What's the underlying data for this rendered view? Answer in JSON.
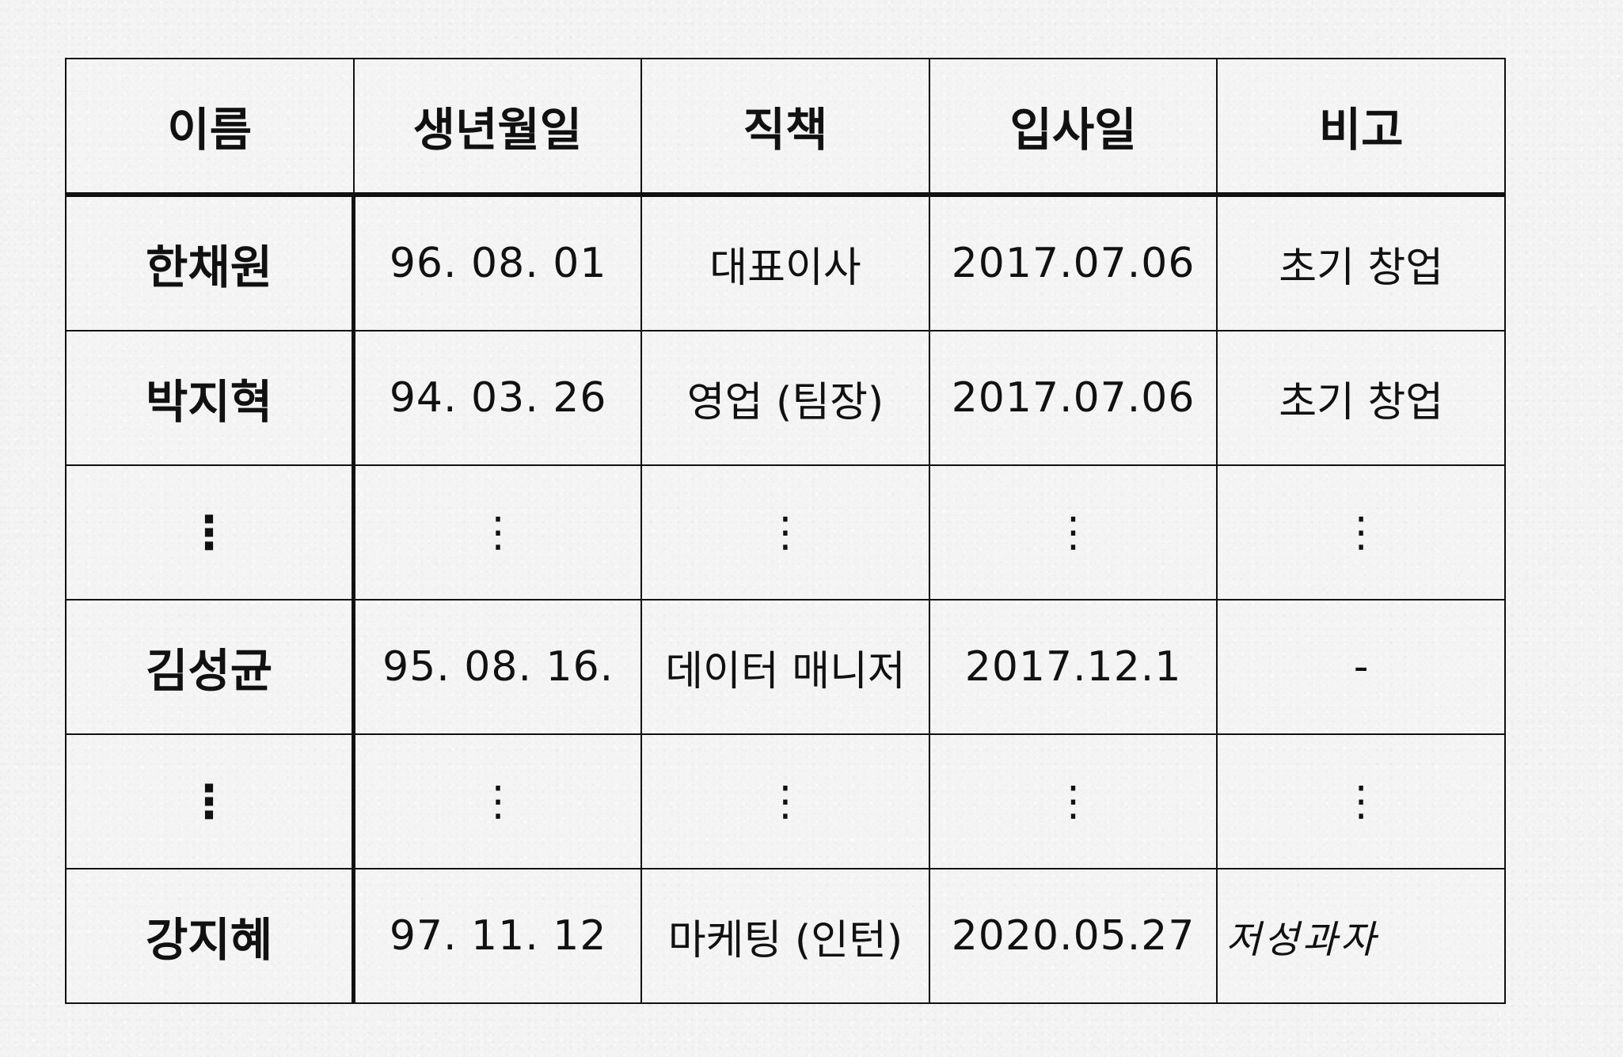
{
  "headers": [
    "이름",
    "생년월일",
    "직책",
    "입사일",
    "비고"
  ],
  "rows": [
    {
      "name": "한채원",
      "birth": "96. 08. 01",
      "position": "대표이사",
      "joined": "2017.07.06",
      "note": "초기 창업"
    },
    {
      "name": "박지혁",
      "birth": "94. 03. 26",
      "position": "영업 (팀장)",
      "joined": "2017.07.06",
      "note": "초기 창업"
    },
    {
      "name": "⋮",
      "birth": "⋮",
      "position": "⋮",
      "joined": "⋮",
      "note": "⋮"
    },
    {
      "name": "김성균",
      "birth": "95. 08. 16.",
      "position": "데이터 매니저",
      "joined": "2017.12.1",
      "note": "-"
    },
    {
      "name": "⋮",
      "birth": "⋮",
      "position": "⋮",
      "joined": "⋮",
      "note": "⋮"
    },
    {
      "name": "강지혜",
      "birth": "97. 11. 12",
      "position": "마케팅 (인턴)",
      "joined": "2020.05.27",
      "note": "저성과자"
    }
  ],
  "colors": {
    "paper": "#f3f3f3",
    "ink": "#111111"
  }
}
